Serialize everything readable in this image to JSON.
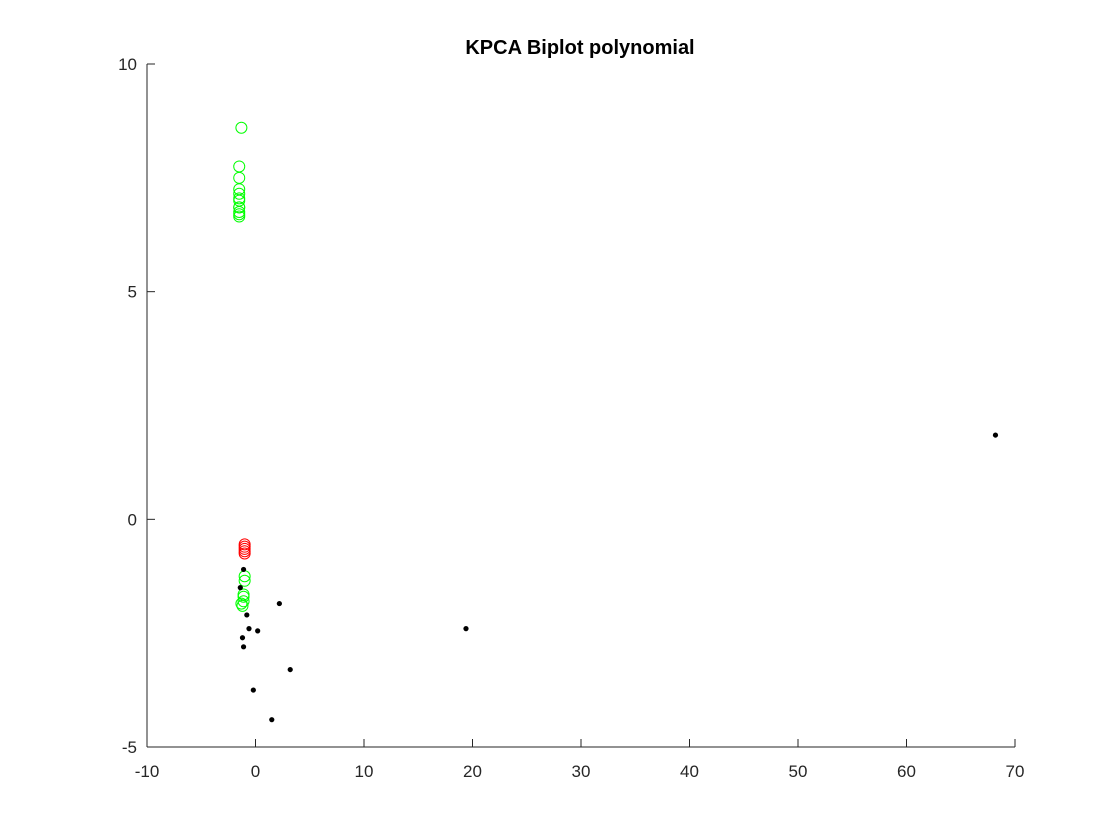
{
  "chart_data": {
    "type": "scatter",
    "title": "KPCA Biplot polynomial",
    "xlabel": "",
    "ylabel": "",
    "xlim": [
      -10,
      70
    ],
    "ylim": [
      -5,
      10
    ],
    "xticks": [
      -10,
      0,
      10,
      20,
      30,
      40,
      50,
      60,
      70
    ],
    "yticks": [
      -5,
      0,
      5,
      10
    ],
    "xtick_labels": [
      "-10",
      "0",
      "10",
      "20",
      "30",
      "40",
      "50",
      "60",
      "70"
    ],
    "ytick_labels": [
      "-5",
      "0",
      "5",
      "10"
    ],
    "grid": false,
    "legend": "none",
    "axes_box": "left-bottom",
    "series": [
      {
        "marker": "open-circle",
        "color": "#00ff00",
        "x": [
          -1.3,
          -1.5,
          -1.5,
          -1.5,
          -1.5,
          -1.5,
          -1.5,
          -1.5,
          -1.5,
          -1.5,
          -1.5,
          -1.5,
          -1.0,
          -1.0,
          -1.1,
          -1.1,
          -1.1,
          -1.2,
          -1.3
        ],
        "y": [
          8.6,
          7.75,
          7.5,
          7.25,
          7.15,
          7.05,
          6.85,
          6.75,
          6.7,
          6.65,
          6.85,
          7.0,
          -1.25,
          -1.35,
          -1.65,
          -1.7,
          -1.8,
          -1.9,
          -1.85
        ]
      },
      {
        "marker": "open-circle",
        "color": "#ff0000",
        "x": [
          -1.0,
          -1.0,
          -1.0,
          -1.0,
          -1.0
        ],
        "y": [
          -0.55,
          -0.6,
          -0.65,
          -0.7,
          -0.75
        ]
      },
      {
        "marker": "dot",
        "color": "#000000",
        "x": [
          -1.1,
          -1.4,
          -0.8,
          -0.6,
          -1.2,
          -1.1,
          0.2,
          2.2,
          19.4,
          3.2,
          -0.2,
          1.5,
          68.2
        ],
        "y": [
          -1.1,
          -1.5,
          -2.1,
          -2.4,
          -2.6,
          -2.8,
          -2.45,
          -1.85,
          -2.4,
          -3.3,
          -3.75,
          -4.4,
          1.85
        ]
      }
    ]
  }
}
